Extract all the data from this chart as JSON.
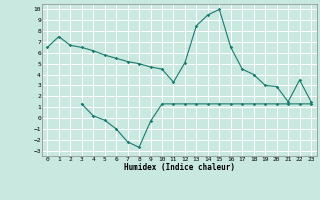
{
  "line1_x": [
    0,
    1,
    2,
    3,
    4,
    5,
    6,
    7,
    8,
    9,
    10,
    11,
    12,
    13,
    14,
    15,
    16,
    17,
    18,
    19,
    20,
    21,
    22,
    23
  ],
  "line1_y": [
    6.5,
    7.5,
    6.7,
    6.5,
    6.2,
    5.8,
    5.5,
    5.2,
    5.0,
    4.7,
    4.5,
    3.3,
    5.1,
    8.5,
    9.5,
    10.0,
    6.5,
    4.5,
    4.0,
    3.0,
    2.9,
    1.5,
    3.5,
    1.5
  ],
  "line2_x": [
    3,
    4,
    5,
    6,
    7,
    8,
    9,
    10,
    11,
    12,
    13,
    14,
    15,
    16,
    17,
    18,
    19,
    20,
    21,
    22,
    23
  ],
  "line2_y": [
    1.3,
    0.2,
    -0.2,
    -1.0,
    -2.2,
    -2.7,
    -0.3,
    1.3,
    1.3,
    1.3,
    1.3,
    1.3,
    1.3,
    1.3,
    1.3,
    1.3,
    1.3,
    1.3,
    1.3,
    1.3,
    1.3
  ],
  "line_color": "#1a7a6e",
  "bg_color": "#c8e8e0",
  "grid_color": "#ffffff",
  "xlabel": "Humidex (Indice chaleur)",
  "xlim": [
    -0.5,
    23.5
  ],
  "ylim": [
    -3.5,
    10.5
  ],
  "yticks": [
    -3,
    -2,
    -1,
    0,
    1,
    2,
    3,
    4,
    5,
    6,
    7,
    8,
    9,
    10
  ],
  "xticks": [
    0,
    1,
    2,
    3,
    4,
    5,
    6,
    7,
    8,
    9,
    10,
    11,
    12,
    13,
    14,
    15,
    16,
    17,
    18,
    19,
    20,
    21,
    22,
    23
  ]
}
